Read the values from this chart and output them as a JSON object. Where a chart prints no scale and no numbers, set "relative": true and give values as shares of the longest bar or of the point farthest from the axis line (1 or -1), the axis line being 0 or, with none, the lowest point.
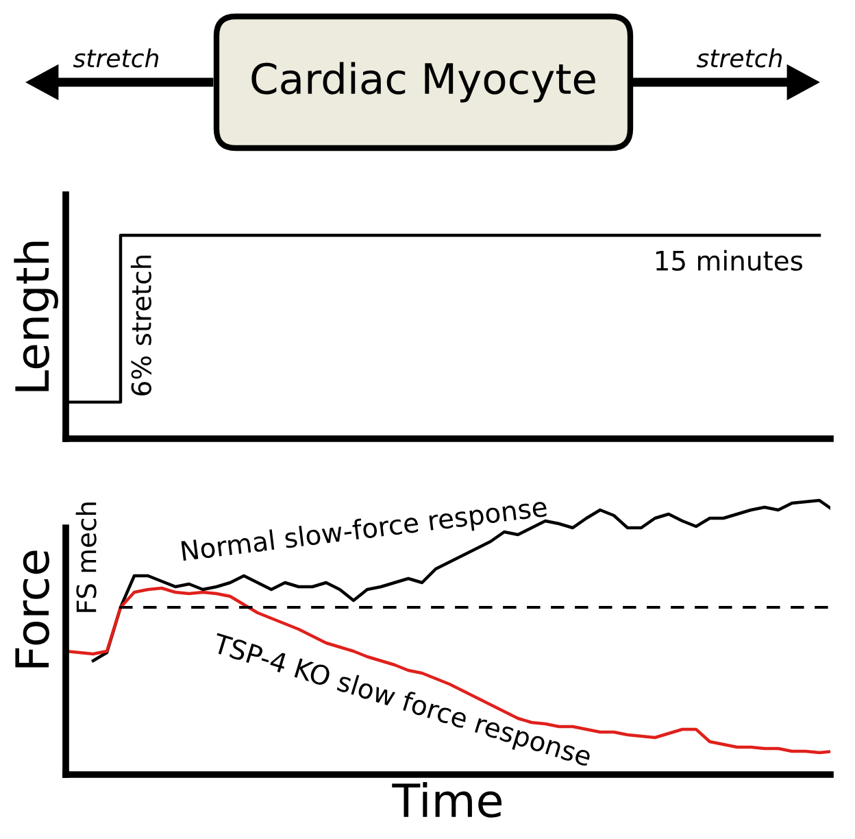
{
  "chart_data": [
    {
      "type": "other",
      "annotations": [
        "stretch",
        "Cardiac Myocyte",
        "stretch"
      ]
    },
    {
      "type": "step",
      "ylabel": "Length",
      "relative": true,
      "annotations": [
        "6% stretch",
        "15 minutes"
      ],
      "categories": [
        null,
        null,
        null,
        null,
        null,
        null,
        null,
        null,
        null,
        null,
        null,
        null,
        null,
        null,
        null,
        null,
        null,
        null,
        null,
        null,
        null,
        null,
        null,
        null,
        null,
        null,
        null,
        null,
        null,
        null,
        null,
        null,
        null,
        null,
        null,
        null,
        null,
        null,
        null,
        null,
        null,
        null,
        null,
        null,
        null,
        null,
        null,
        null,
        null,
        null,
        null,
        null,
        null,
        null,
        null,
        null,
        null
      ],
      "series": [
        {
          "color": "#000000",
          "values": [
            0.18,
            0.18,
            0.18,
            0.18,
            1,
            1,
            1,
            1,
            1,
            1,
            1,
            1,
            1,
            1,
            1,
            1,
            1,
            1,
            1,
            1,
            1,
            1,
            1,
            1,
            1,
            1,
            1,
            1,
            1,
            1,
            1,
            1,
            1,
            1,
            1,
            1,
            1,
            1,
            1,
            1,
            1,
            1,
            1,
            1,
            1,
            1,
            1,
            1,
            1,
            1,
            1,
            1,
            1,
            1,
            1,
            null,
            null
          ]
        }
      ]
    },
    {
      "type": "line",
      "xlabel": "Time",
      "ylabel": "Force",
      "relative": true,
      "annotations": [
        "FS mech"
      ],
      "ref_lines": [
        {
          "axis": "y",
          "value": 0.61,
          "color": "#000000",
          "line_style": "dashed"
        }
      ],
      "categories": [
        null,
        null,
        null,
        null,
        null,
        null,
        null,
        null,
        null,
        null,
        null,
        null,
        null,
        null,
        null,
        null,
        null,
        null,
        null,
        null,
        null,
        null,
        null,
        null,
        null,
        null,
        null,
        null,
        null,
        null,
        null,
        null,
        null,
        null,
        null,
        null,
        null,
        null,
        null,
        null,
        null,
        null,
        null,
        null,
        null,
        null,
        null,
        null,
        null,
        null,
        null,
        null,
        null,
        null,
        null,
        null,
        null
      ],
      "series": [
        {
          "name": "Normal slow-force response",
          "color": "#000000",
          "values": [
            null,
            null,
            0.415,
            0.445,
            0.61,
            0.725,
            0.725,
            0.705,
            0.685,
            0.695,
            0.675,
            0.685,
            0.7,
            0.725,
            0.7,
            0.675,
            0.7,
            0.685,
            0.685,
            0.7,
            0.675,
            0.635,
            0.675,
            0.685,
            0.7,
            0.715,
            0.7,
            0.75,
            0.775,
            0.8,
            0.825,
            0.85,
            0.885,
            0.875,
            0.9,
            0.925,
            0.915,
            0.9,
            0.935,
            0.965,
            0.945,
            0.9,
            0.9,
            0.935,
            0.95,
            0.925,
            0.905,
            0.935,
            0.935,
            0.95,
            0.965,
            0.975,
            0.965,
            0.99,
            0.995,
            1,
            0.965
          ]
        },
        {
          "name": "TSP-4 KO slow force response",
          "color": "#e0201b",
          "values": [
            0.45,
            0.445,
            0.44,
            0.45,
            0.61,
            0.665,
            0.675,
            0.68,
            0.665,
            0.66,
            0.665,
            0.66,
            0.65,
            0.62,
            0.59,
            0.57,
            0.55,
            0.53,
            0.505,
            0.48,
            0.465,
            0.45,
            0.43,
            0.415,
            0.4,
            0.38,
            0.37,
            0.35,
            0.33,
            0.305,
            0.28,
            0.255,
            0.23,
            0.205,
            0.19,
            0.185,
            0.175,
            0.175,
            0.165,
            0.155,
            0.155,
            0.145,
            0.14,
            0.135,
            0.15,
            0.165,
            0.165,
            0.12,
            0.11,
            0.1,
            0.1,
            0.095,
            0.095,
            0.085,
            0.085,
            0.08,
            0.085
          ]
        }
      ]
    }
  ]
}
